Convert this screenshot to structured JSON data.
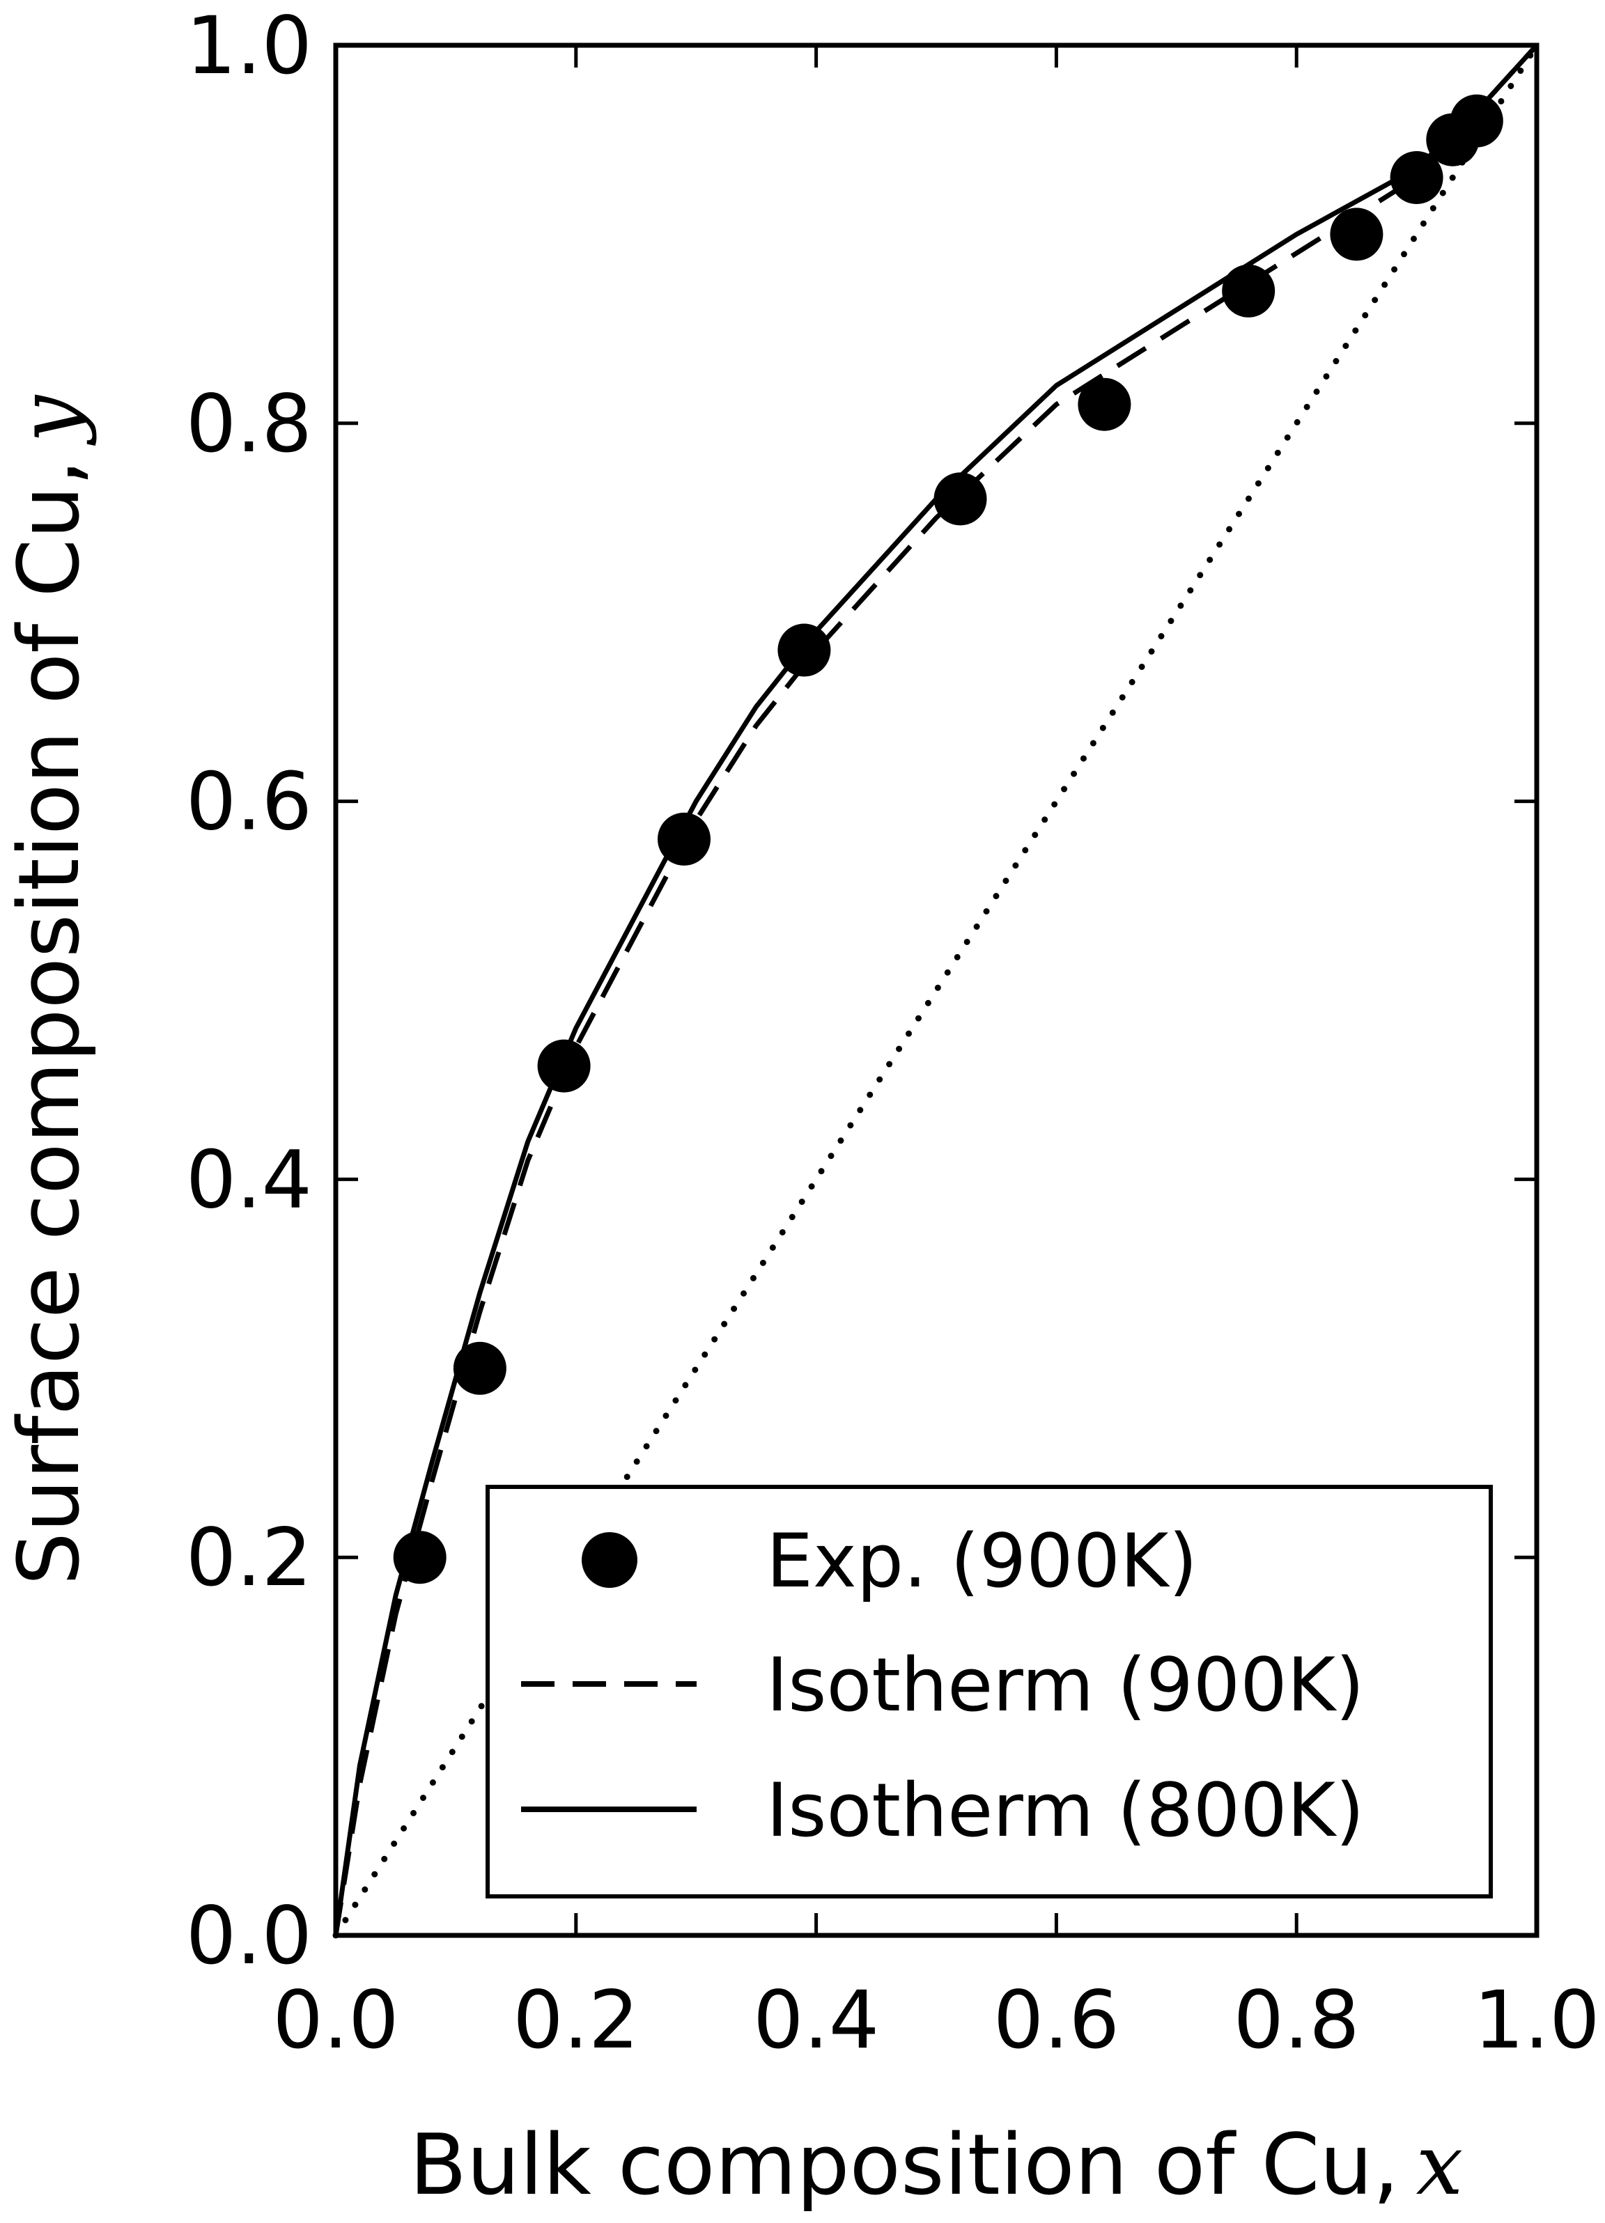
{
  "chart_data": {
    "type": "line",
    "title": "",
    "xlabel": "Bulk composition of Cu,",
    "xlabel_var": "x",
    "ylabel": "Surface composition of Cu,",
    "ylabel_var": "y",
    "xlim": [
      0.0,
      1.0
    ],
    "ylim": [
      0.0,
      1.0
    ],
    "xticks": [
      "0.0",
      "0.2",
      "0.4",
      "0.6",
      "0.8",
      "1.0"
    ],
    "yticks": [
      "0.0",
      "0.2",
      "0.4",
      "0.6",
      "0.8",
      "1.0"
    ],
    "grid": false,
    "legend_position": "bottom-right",
    "series": [
      {
        "name": "Exp. (900K)",
        "kind": "scatter",
        "color": "#000000",
        "x": [
          0.07,
          0.12,
          0.19,
          0.29,
          0.39,
          0.52,
          0.64,
          0.76,
          0.85,
          0.9,
          0.93,
          0.95
        ],
        "y": [
          0.2,
          0.3,
          0.46,
          0.58,
          0.68,
          0.76,
          0.81,
          0.87,
          0.9,
          0.93,
          0.95,
          0.96
        ]
      },
      {
        "name": "Isotherm (900K)",
        "kind": "line",
        "style": "dashed",
        "color": "#000000",
        "x": [
          0.0,
          0.02,
          0.05,
          0.08,
          0.12,
          0.16,
          0.2,
          0.25,
          0.3,
          0.35,
          0.4,
          0.5,
          0.6,
          0.7,
          0.8,
          0.9,
          0.95,
          1.0
        ],
        "y": [
          0.0,
          0.08,
          0.17,
          0.24,
          0.33,
          0.41,
          0.47,
          0.53,
          0.59,
          0.64,
          0.68,
          0.75,
          0.81,
          0.85,
          0.89,
          0.93,
          0.965,
          1.0
        ]
      },
      {
        "name": "Isotherm (800K)",
        "kind": "line",
        "style": "solid",
        "color": "#000000",
        "x": [
          0.0,
          0.02,
          0.05,
          0.08,
          0.12,
          0.16,
          0.2,
          0.25,
          0.3,
          0.35,
          0.4,
          0.5,
          0.6,
          0.7,
          0.8,
          0.9,
          0.95,
          1.0
        ],
        "y": [
          0.0,
          0.09,
          0.18,
          0.25,
          0.34,
          0.42,
          0.48,
          0.54,
          0.6,
          0.65,
          0.69,
          0.76,
          0.82,
          0.86,
          0.9,
          0.935,
          0.965,
          1.0
        ]
      },
      {
        "kind": "line",
        "style": "dotted",
        "color": "#000000",
        "x": [
          0.0,
          0.2,
          0.4,
          0.6,
          0.8,
          1.0
        ],
        "y": [
          0.0,
          0.2,
          0.4,
          0.6,
          0.8,
          1.0
        ]
      }
    ]
  }
}
